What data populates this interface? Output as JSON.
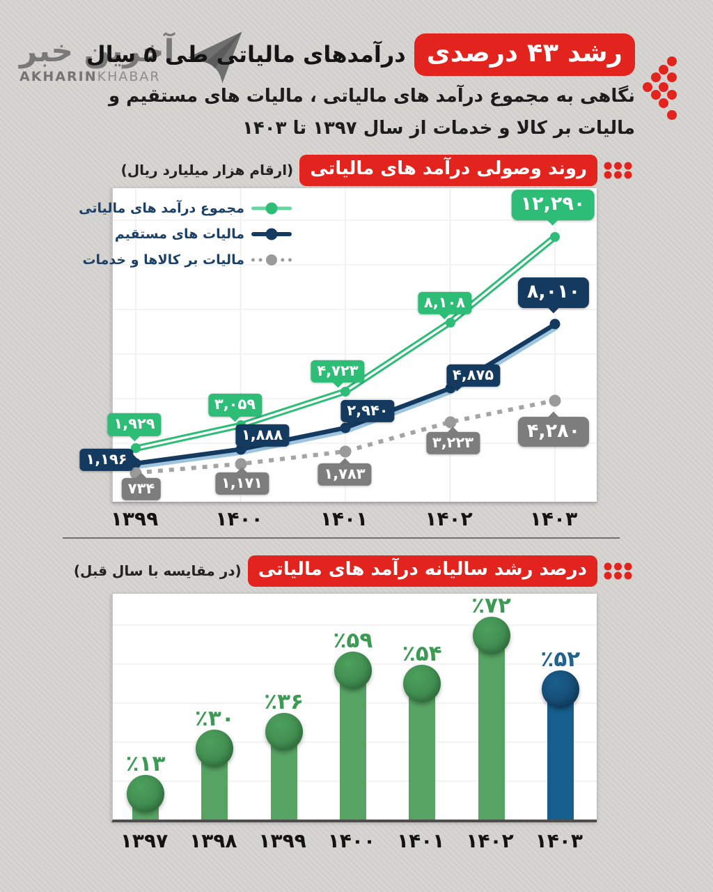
{
  "logo": {
    "fa": "آخرین خبر",
    "en_bold": "AKHARIN",
    "en_light": "KHABAR"
  },
  "header": {
    "badge": "رشد ۴۳ درصدی",
    "title_rest": "درآمدهای مالیاتی طی ۵ سال",
    "subtitle_line1": "نگاهی به مجموع درآمد های مالیاتی ، مالیات های مستقیم و",
    "subtitle_line2": "مالیات بر کالا و خدمات از سال ۱۳۹۷ تا ۱۴۰۳"
  },
  "section1": {
    "badge": "روند وصولی درآمد های مالیاتی",
    "note": "(ارقام هزار میلیارد ریال)"
  },
  "section2": {
    "badge": "درصد رشد سالیانه درآمد های مالیاتی",
    "note": "(در مقایسه با سال قبل)"
  },
  "colors": {
    "accent_red": "#e3231e",
    "green": "#2ebd77",
    "navy": "#143a5f",
    "gray": "#9a9a9a",
    "bar_green": "#56a363",
    "bar_blue": "#155e8d",
    "background": "#d6d4d1"
  },
  "chart_data": [
    {
      "type": "line",
      "title": "روند وصولی درآمد های مالیاتی",
      "unit_note": "(ارقام هزار میلیارد ریال)",
      "categories": [
        "۱۳۹۹",
        "۱۴۰۰",
        "۱۴۰۱",
        "۱۴۰۲",
        "۱۴۰۳"
      ],
      "categories_latin": [
        1399,
        1400,
        1401,
        1402,
        1403
      ],
      "series": [
        {
          "name": "مجموع درآمد های مالیاتی",
          "color": "#2ebd77",
          "style": "double-line",
          "values": [
            1929,
            3059,
            4723,
            8108,
            12290
          ],
          "labels": [
            "۱,۹۲۹",
            "۳,۰۵۹",
            "۴,۷۲۳",
            "۸,۱۰۸",
            "۱۲,۲۹۰"
          ]
        },
        {
          "name": "مالیات های مستقیم",
          "color": "#143a5f",
          "style": "solid-with-highlight",
          "values": [
            1196,
            1888,
            2940,
            4875,
            8010
          ],
          "labels": [
            "۱,۱۹۶",
            "۱,۸۸۸",
            "۲,۹۴۰",
            "۴,۸۷۵",
            "۸,۰۱۰"
          ]
        },
        {
          "name": "مالیات بر کالاها و خدمات",
          "color": "#9a9a9a",
          "style": "dotted",
          "values": [
            734,
            1171,
            1783,
            3223,
            4280
          ],
          "labels": [
            "۷۳۴",
            "۱,۱۷۱",
            "۱,۷۸۳",
            "۳,۲۲۳",
            "۴,۲۸۰"
          ]
        }
      ],
      "ylim": [
        0,
        14000
      ],
      "grid": true,
      "legend_position": "top-left"
    },
    {
      "type": "bar",
      "title": "درصد رشد سالیانه درآمد های مالیاتی",
      "unit_note": "(در مقایسه با سال قبل)",
      "categories": [
        "۱۳۹۷",
        "۱۳۹۸",
        "۱۳۹۹",
        "۱۴۰۰",
        "۱۴۰۱",
        "۱۴۰۲",
        "۱۴۰۳"
      ],
      "categories_latin": [
        1397,
        1398,
        1399,
        1400,
        1401,
        1402,
        1403
      ],
      "values": [
        13,
        30,
        36,
        59,
        54,
        72,
        52
      ],
      "labels": [
        "٪۱۳",
        "٪۳۰",
        "٪۳۶",
        "٪۵۹",
        "٪۵۴",
        "٪۷۲",
        "٪۵۲"
      ],
      "ylim": [
        0,
        80
      ],
      "bar_color": "#56a363",
      "highlight_index": 6,
      "highlight_color": "#155e8d"
    }
  ]
}
